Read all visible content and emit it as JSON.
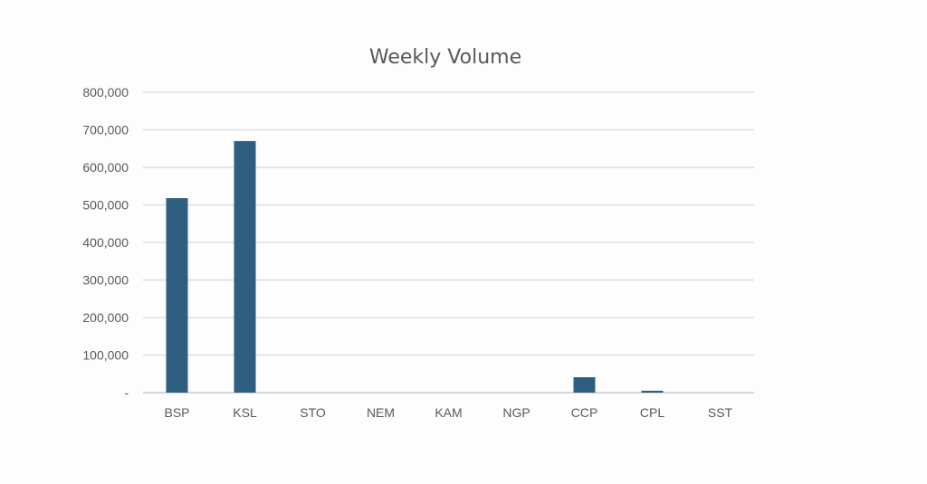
{
  "chart_data": {
    "type": "bar",
    "title": "Weekly Volume",
    "xlabel": "",
    "ylabel": "",
    "categories": [
      "BSP",
      "KSL",
      "STO",
      "NEM",
      "KAM",
      "NGP",
      "CCP",
      "CPL",
      "SST"
    ],
    "values": [
      518000,
      670000,
      0,
      0,
      0,
      0,
      41000,
      5000,
      0
    ],
    "ylim": [
      0,
      800000
    ],
    "yticks": [
      0,
      100000,
      200000,
      300000,
      400000,
      500000,
      600000,
      700000,
      800000
    ],
    "ytick_labels": [
      "-",
      "100,000",
      "200,000",
      "300,000",
      "400,000",
      "500,000",
      "600,000",
      "700,000",
      "800,000"
    ],
    "grid": true,
    "legend": "none",
    "bar_color": "#2e5f80"
  }
}
